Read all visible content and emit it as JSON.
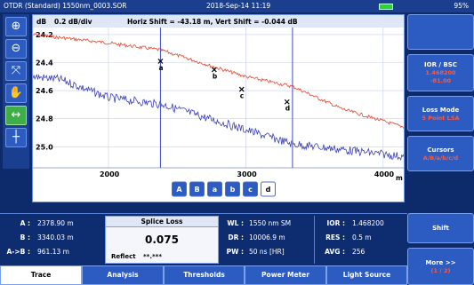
{
  "status": {
    "title": "OTDR (Standard) 1550nm_0003.SOR",
    "datetime": "2018-Sep-14 11:19",
    "battery_pct": "95%",
    "battery_level": 0.95
  },
  "toolbar": {
    "icons": [
      "zoom-in-icon",
      "zoom-out-icon",
      "fit-icon",
      "hand-icon",
      "cursor-horizontal-icon",
      "cursor-vertical-icon"
    ],
    "glyphs": [
      "⊕",
      "⊖",
      "⤧",
      "✋",
      "↔",
      "┼"
    ]
  },
  "graph": {
    "unit": "dB",
    "scale": "0.2 dB/div",
    "shift_text": "Horiz Shift = -43.18 m, Vert Shift = -0.044 dB",
    "x_unit": "m",
    "colors": {
      "red_trace": "#e8442a",
      "blue_trace": "#3b3fb3",
      "cursor_line": "#4d5bd0"
    }
  },
  "chart_data": {
    "type": "line",
    "xlabel": "m",
    "ylabel": "dB",
    "xlim": [
      1450,
      4150
    ],
    "ylim": [
      25.15,
      24.15
    ],
    "x_ticks": [
      2000,
      3000,
      4000
    ],
    "y_ticks": [
      24.2,
      24.4,
      24.6,
      24.8,
      25.0
    ],
    "series": [
      {
        "color": "#e8442a",
        "x": [
          1450,
          2000,
          2378.9,
          2800,
          3000,
          3340,
          3700,
          4150
        ],
        "y": [
          24.2,
          24.26,
          24.31,
          24.44,
          24.5,
          24.57,
          24.73,
          24.86
        ]
      },
      {
        "color": "#3b3fb3",
        "x": [
          1450,
          1650,
          2000,
          2400,
          2800,
          3000,
          3340,
          3700,
          4150
        ],
        "y": [
          24.5,
          24.52,
          24.65,
          24.7,
          24.82,
          24.88,
          24.98,
          25.02,
          25.07
        ]
      }
    ],
    "cursor_lines_x": [
      2378.9,
      3340.03
    ],
    "markers": [
      {
        "label": "a",
        "x": 2378.9,
        "y": 24.39
      },
      {
        "label": "b",
        "x": 2770,
        "y": 24.45
      },
      {
        "label": "c",
        "x": 2970,
        "y": 24.59
      },
      {
        "label": "d",
        "x": 3300,
        "y": 24.68
      }
    ]
  },
  "cursor_buttons": [
    "A",
    "B",
    "a",
    "b",
    "c",
    "d"
  ],
  "cursor_active_index": 5,
  "measure": {
    "a_label": "A :",
    "a_value": "2378.90 m",
    "b_label": "B :",
    "b_value": "3340.03 m",
    "ab_label": "A->B :",
    "ab_value": "961.13 m"
  },
  "splice": {
    "title": "Splice Loss",
    "value": "0.075",
    "reflect_label": "Reflect",
    "reflect_value": "**.***"
  },
  "params": {
    "wl_label": "WL :",
    "wl_value": "1550 nm SM",
    "dr_label": "DR :",
    "dr_value": "10006.9 m",
    "pw_label": "PW :",
    "pw_value": "50 ns [HR]",
    "ior_label": "IOR :",
    "ior_value": "1.468200",
    "res_label": "RES :",
    "res_value": "0.5 m",
    "avg_label": "AVG :",
    "avg_value": "256"
  },
  "sidebar": {
    "ior_label": "IOR / BSC",
    "ior_val1": "1.468200",
    "ior_val2": "-81.00",
    "loss_label": "Loss Mode",
    "loss_val": "5 Point LSA",
    "cursors_label": "Cursors",
    "cursors_val": "A/B/a/b/c/d",
    "shift_label": "Shift",
    "more_label": "More >>",
    "more_val": "(1 / 2)"
  },
  "tabs": [
    "Trace",
    "Analysis",
    "Thresholds",
    "Power Meter",
    "Light Source"
  ],
  "tab_active_index": 0
}
